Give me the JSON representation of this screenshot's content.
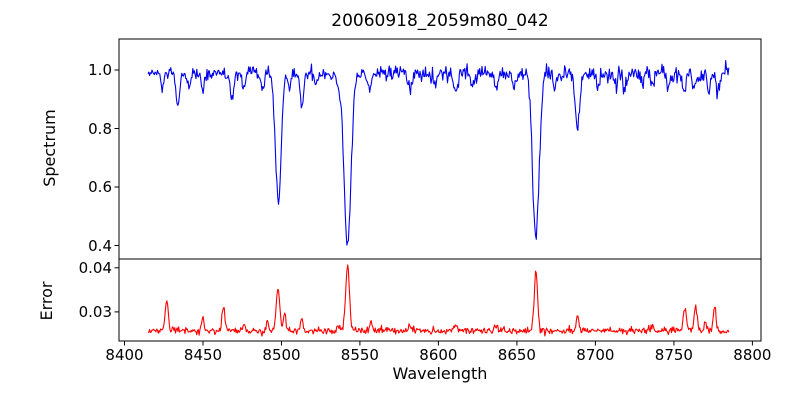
{
  "figure": {
    "title": "20060918_2059m80_042",
    "background": "#ffffff",
    "text_color": "#000000",
    "spine_color": "#000000"
  },
  "chart_data": {
    "type": "line",
    "title": "20060918_2059m80_042",
    "xlabel": "Wavelength",
    "grid": false,
    "legend": false,
    "xlim": [
      8396.5,
      8805.5
    ],
    "x_ticks": {
      "values": [
        8400,
        8450,
        8500,
        8550,
        8600,
        8650,
        8700,
        8750,
        8800
      ],
      "labels": [
        "8400",
        "8450",
        "8500",
        "8550",
        "8600",
        "8650",
        "8700",
        "8750",
        "8800"
      ]
    },
    "panels": [
      {
        "name": "spectrum",
        "ylabel": "Spectrum",
        "color": "#0000ee",
        "line_width": 1.1,
        "ylim": [
          0.354,
          1.106
        ],
        "y_ticks": {
          "values": [
            0.4,
            0.6,
            0.8,
            1.0
          ],
          "labels": [
            "0.4",
            "0.6",
            "0.8",
            "1.0"
          ]
        },
        "series": {
          "x_start": 8415,
          "x_end": 8785,
          "n_points": 740,
          "baseline": 0.988,
          "noise_sigma_start": 0.01,
          "noise_sigma_end": 0.015,
          "seed": 12345,
          "features": [
            {
              "center": 8424.0,
              "amp": -0.05,
              "width": 1.0
            },
            {
              "center": 8433.9,
              "amp": -0.115,
              "width": 1.2
            },
            {
              "center": 8441.0,
              "amp": -0.05,
              "width": 1.0
            },
            {
              "center": 8450.0,
              "amp": -0.06,
              "width": 1.0
            },
            {
              "center": 8468.4,
              "amp": -0.1,
              "width": 1.2
            },
            {
              "center": 8476.0,
              "amp": -0.05,
              "width": 1.0
            },
            {
              "center": 8488.0,
              "amp": -0.06,
              "width": 1.0
            },
            {
              "center": 8498.0,
              "amp": -0.44,
              "width": 1.8
            },
            {
              "center": 8505.0,
              "amp": -0.045,
              "width": 1.0
            },
            {
              "center": 8513.0,
              "amp": -0.1,
              "width": 1.2
            },
            {
              "center": 8522.0,
              "amp": -0.04,
              "width": 1.0
            },
            {
              "center": 8536.0,
              "amp": -0.05,
              "width": 1.0
            },
            {
              "center": 8542.1,
              "amp": -0.59,
              "width": 2.2
            },
            {
              "center": 8556.0,
              "amp": -0.05,
              "width": 1.0
            },
            {
              "center": 8582.0,
              "amp": -0.06,
              "width": 1.1
            },
            {
              "center": 8598.0,
              "amp": -0.05,
              "width": 1.0
            },
            {
              "center": 8611.0,
              "amp": -0.075,
              "width": 1.2
            },
            {
              "center": 8622.0,
              "amp": -0.05,
              "width": 1.0
            },
            {
              "center": 8637.0,
              "amp": -0.045,
              "width": 1.0
            },
            {
              "center": 8648.0,
              "amp": -0.05,
              "width": 1.0
            },
            {
              "center": 8662.1,
              "amp": -0.56,
              "width": 2.1
            },
            {
              "center": 8674.0,
              "amp": -0.06,
              "width": 1.0
            },
            {
              "center": 8688.6,
              "amp": -0.185,
              "width": 1.4
            },
            {
              "center": 8702.0,
              "amp": -0.05,
              "width": 1.0
            },
            {
              "center": 8713.0,
              "amp": -0.05,
              "width": 1.0
            },
            {
              "center": 8718.0,
              "amp": -0.055,
              "width": 1.0
            },
            {
              "center": 8730.0,
              "amp": -0.04,
              "width": 1.0
            },
            {
              "center": 8736.0,
              "amp": -0.05,
              "width": 1.0
            },
            {
              "center": 8747.0,
              "amp": -0.045,
              "width": 1.0
            },
            {
              "center": 8757.0,
              "amp": -0.06,
              "width": 1.0
            },
            {
              "center": 8763.0,
              "amp": -0.055,
              "width": 1.0
            },
            {
              "center": 8772.0,
              "amp": -0.06,
              "width": 1.0
            },
            {
              "center": 8778.0,
              "amp": -0.05,
              "width": 1.0
            }
          ]
        },
        "notable_points": [
          {
            "x": 8498,
            "y_min": 0.53
          },
          {
            "x": 8542,
            "y_min": 0.39
          },
          {
            "x": 8662,
            "y_min": 0.42
          },
          {
            "x": 8689,
            "y_min": 0.8
          }
        ]
      },
      {
        "name": "error",
        "ylabel": "Error",
        "color": "#ff0000",
        "line_width": 1.1,
        "ylim": [
          0.0234,
          0.042
        ],
        "y_ticks": {
          "values": [
            0.03,
            0.04
          ],
          "labels": [
            "0.03",
            "0.04"
          ]
        },
        "series": {
          "x_start": 8415,
          "x_end": 8785,
          "n_points": 740,
          "baseline": 0.0257,
          "noise_sigma_start": 0.00035,
          "noise_sigma_end": 0.00042,
          "seed": 67890,
          "features": [
            {
              "center": 8427.0,
              "amp": 0.0068,
              "width": 0.9
            },
            {
              "center": 8450.0,
              "amp": 0.0028,
              "width": 0.8
            },
            {
              "center": 8463.0,
              "amp": 0.0056,
              "width": 0.9
            },
            {
              "center": 8476.0,
              "amp": 0.0012,
              "width": 0.8
            },
            {
              "center": 8491.0,
              "amp": 0.0022,
              "width": 0.8
            },
            {
              "center": 8497.8,
              "amp": 0.0092,
              "width": 1.1
            },
            {
              "center": 8502.0,
              "amp": 0.004,
              "width": 0.8
            },
            {
              "center": 8513.0,
              "amp": 0.003,
              "width": 0.8
            },
            {
              "center": 8536.0,
              "amp": 0.001,
              "width": 0.8
            },
            {
              "center": 8542.1,
              "amp": 0.015,
              "width": 1.2
            },
            {
              "center": 8557.0,
              "amp": 0.0022,
              "width": 0.8
            },
            {
              "center": 8582.0,
              "amp": 0.0012,
              "width": 0.8
            },
            {
              "center": 8611.0,
              "amp": 0.0014,
              "width": 0.8
            },
            {
              "center": 8637.0,
              "amp": 0.001,
              "width": 0.8
            },
            {
              "center": 8662.1,
              "amp": 0.0131,
              "width": 1.1
            },
            {
              "center": 8688.6,
              "amp": 0.0035,
              "width": 0.9
            },
            {
              "center": 8736.0,
              "amp": 0.0012,
              "width": 0.8
            },
            {
              "center": 8757.0,
              "amp": 0.005,
              "width": 1.0
            },
            {
              "center": 8764.0,
              "amp": 0.0052,
              "width": 1.0
            },
            {
              "center": 8770.0,
              "amp": 0.002,
              "width": 0.8
            },
            {
              "center": 8776.0,
              "amp": 0.0058,
              "width": 0.9
            }
          ]
        },
        "notable_points": [
          {
            "x": 8542,
            "y_max": 0.041
          },
          {
            "x": 8662,
            "y_max": 0.039
          }
        ]
      }
    ]
  }
}
